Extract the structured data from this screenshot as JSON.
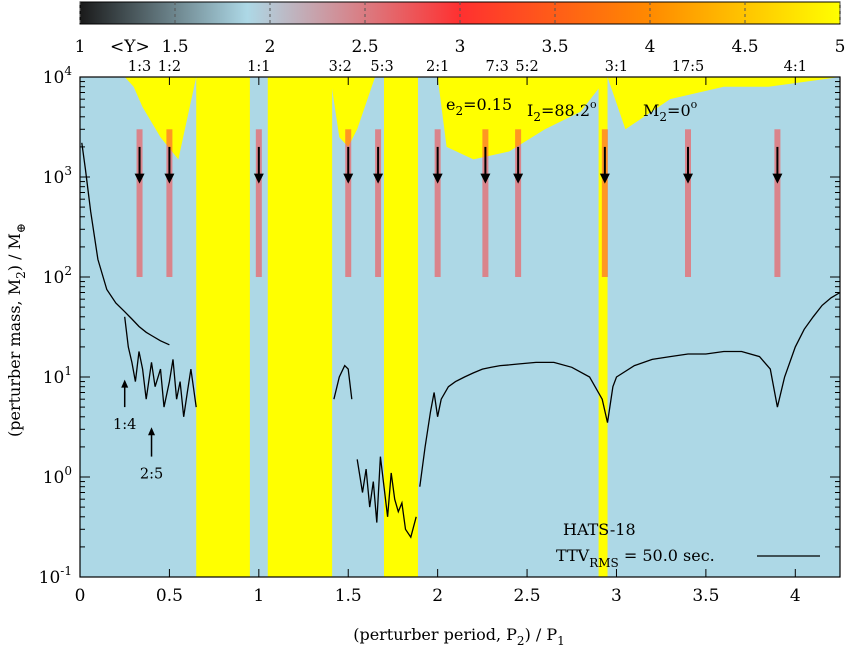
{
  "chart_data": {
    "type": "heatmap",
    "title": "",
    "xlabel_main": "(perturber period, P",
    "xlabel_sub": "2",
    "xlabel_tail": ") / P",
    "xlabel_sub2": "1",
    "ylabel_main": "(perturber mass, M",
    "ylabel_sub": "2",
    "ylabel_tail": ") / M",
    "ylabel_symbol": "⊕",
    "xlim": [
      0,
      4.25
    ],
    "ylim": [
      0.1,
      10000
    ],
    "yscale": "log",
    "x_ticks": [
      {
        "value": 0,
        "label": "0"
      },
      {
        "value": 0.5,
        "label": "0.5"
      },
      {
        "value": 1,
        "label": "1"
      },
      {
        "value": 1.5,
        "label": "1.5"
      },
      {
        "value": 2,
        "label": "2"
      },
      {
        "value": 2.5,
        "label": "2.5"
      },
      {
        "value": 3,
        "label": "3"
      },
      {
        "value": 3.5,
        "label": "3.5"
      },
      {
        "value": 4,
        "label": "4"
      }
    ],
    "y_ticks": [
      {
        "value": 0.1,
        "base": "10",
        "exp": "-1"
      },
      {
        "value": 1,
        "base": "10",
        "exp": "0"
      },
      {
        "value": 10,
        "base": "10",
        "exp": "1"
      },
      {
        "value": 100,
        "base": "10",
        "exp": "2"
      },
      {
        "value": 1000,
        "base": "10",
        "exp": "3"
      },
      {
        "value": 10000,
        "base": "10",
        "exp": "4"
      }
    ],
    "colorbar": {
      "label": "<Y>",
      "range": [
        1,
        5
      ],
      "ticks": [
        {
          "value": 1,
          "label": "1"
        },
        {
          "value": 1.5,
          "label": "1.5"
        },
        {
          "value": 2,
          "label": "2"
        },
        {
          "value": 2.5,
          "label": "2.5"
        },
        {
          "value": 3,
          "label": "3"
        },
        {
          "value": 3.5,
          "label": "3.5"
        },
        {
          "value": 4,
          "label": "4"
        },
        {
          "value": 4.5,
          "label": "4.5"
        },
        {
          "value": 5,
          "label": "5"
        }
      ],
      "colors": [
        "#1a1a1a",
        "#add8e6",
        "#ff3030",
        "#ff8a00",
        "#ffff00"
      ]
    },
    "resonances_top": [
      {
        "x": 0.333,
        "label": "1:3"
      },
      {
        "x": 0.5,
        "label": "1:2"
      },
      {
        "x": 1.0,
        "label": "1:1"
      },
      {
        "x": 1.5,
        "label": "3:2"
      },
      {
        "x": 1.667,
        "label": "5:3"
      },
      {
        "x": 2.0,
        "label": "2:1"
      },
      {
        "x": 2.333,
        "label": "7:3"
      },
      {
        "x": 2.5,
        "label": "5:2"
      },
      {
        "x": 3.0,
        "label": "3:1"
      },
      {
        "x": 3.4,
        "label": "17:5"
      },
      {
        "x": 4.0,
        "label": "4:1"
      }
    ],
    "resonance_arrows_x": [
      0.333,
      0.5,
      1.0,
      1.5,
      1.667,
      2.0,
      2.267,
      2.45,
      2.935,
      3.4,
      3.9
    ],
    "resonances_inner": [
      {
        "x": 0.25,
        "label": "1:4",
        "y_tip": 9,
        "y_tail": 5
      },
      {
        "x": 0.4,
        "label": "2:5",
        "y_tip": 3,
        "y_tail": 1.6
      }
    ],
    "annotations": {
      "e2": {
        "main": "e",
        "sub": "2",
        "tail": "=0.15"
      },
      "i2": {
        "main": "I",
        "sub": "2",
        "tail": "=88.2",
        "sup": "o"
      },
      "m2": {
        "main": "M",
        "sub": "2",
        "tail": "=0",
        "sup": "o"
      }
    },
    "legend": {
      "placement": "bottom-right",
      "system": "HATS-18",
      "entry_main": "TTV",
      "entry_sub": "RMS",
      "entry_tail": " = 50.0 sec."
    },
    "yellow_regions": [
      [
        0.65,
        0.95
      ],
      [
        1.05,
        1.41
      ],
      [
        1.7,
        1.89
      ],
      [
        2.9,
        2.95
      ]
    ],
    "ttv_curve": [
      [
        0.01,
        2200
      ],
      [
        0.03,
        1200
      ],
      [
        0.06,
        450
      ],
      [
        0.1,
        150
      ],
      [
        0.15,
        75
      ],
      [
        0.2,
        55
      ],
      [
        0.25,
        45
      ],
      [
        0.29,
        38
      ],
      [
        0.33,
        32
      ],
      [
        0.37,
        28
      ],
      [
        0.4,
        26
      ],
      [
        0.45,
        23
      ],
      [
        0.5,
        21
      ]
    ],
    "ttv_curve_b": [
      [
        0.25,
        40
      ],
      [
        0.27,
        20
      ],
      [
        0.29,
        14
      ],
      [
        0.31,
        9
      ],
      [
        0.33,
        18
      ],
      [
        0.35,
        12
      ],
      [
        0.37,
        6
      ],
      [
        0.4,
        14
      ],
      [
        0.42,
        8
      ],
      [
        0.45,
        12
      ],
      [
        0.47,
        5
      ],
      [
        0.5,
        9
      ],
      [
        0.52,
        15
      ],
      [
        0.54,
        6
      ],
      [
        0.56,
        9
      ],
      [
        0.58,
        4
      ],
      [
        0.6,
        7
      ],
      [
        0.62,
        12
      ],
      [
        0.65,
        5
      ]
    ],
    "ttv_curve_c": [
      [
        1.42,
        6
      ],
      [
        1.45,
        10
      ],
      [
        1.48,
        13
      ],
      [
        1.5,
        12
      ],
      [
        1.52,
        6
      ]
    ],
    "ttv_curve_d": [
      [
        1.55,
        1.5
      ],
      [
        1.58,
        0.7
      ],
      [
        1.6,
        1.2
      ],
      [
        1.62,
        0.5
      ],
      [
        1.64,
        0.9
      ],
      [
        1.66,
        0.35
      ],
      [
        1.68,
        1.6
      ],
      [
        1.7,
        0.8
      ],
      [
        1.72,
        0.4
      ],
      [
        1.74,
        1.1
      ],
      [
        1.76,
        0.6
      ],
      [
        1.78,
        0.45
      ],
      [
        1.8,
        0.55
      ],
      [
        1.82,
        0.3
      ],
      [
        1.85,
        0.25
      ],
      [
        1.88,
        0.4
      ]
    ],
    "ttv_curve_e": [
      [
        1.9,
        0.8
      ],
      [
        1.93,
        2
      ],
      [
        1.96,
        4.5
      ],
      [
        1.98,
        7
      ],
      [
        2.0,
        4
      ],
      [
        2.02,
        6
      ],
      [
        2.06,
        8
      ],
      [
        2.1,
        9
      ],
      [
        2.15,
        10
      ],
      [
        2.2,
        11
      ],
      [
        2.25,
        12
      ],
      [
        2.3,
        12.5
      ],
      [
        2.35,
        13
      ],
      [
        2.4,
        13.2
      ],
      [
        2.45,
        13.5
      ],
      [
        2.55,
        14
      ],
      [
        2.65,
        14
      ],
      [
        2.75,
        12.5
      ],
      [
        2.85,
        10
      ],
      [
        2.92,
        6
      ],
      [
        2.95,
        3.5
      ],
      [
        2.98,
        8
      ],
      [
        3.0,
        10
      ],
      [
        3.1,
        13
      ],
      [
        3.2,
        15
      ],
      [
        3.3,
        16
      ],
      [
        3.4,
        17
      ],
      [
        3.5,
        17
      ],
      [
        3.6,
        18
      ],
      [
        3.7,
        18
      ],
      [
        3.8,
        16
      ],
      [
        3.86,
        12
      ],
      [
        3.9,
        5
      ],
      [
        3.94,
        10
      ],
      [
        4.0,
        20
      ],
      [
        4.05,
        30
      ],
      [
        4.1,
        40
      ],
      [
        4.15,
        52
      ],
      [
        4.2,
        62
      ],
      [
        4.25,
        70
      ]
    ]
  }
}
